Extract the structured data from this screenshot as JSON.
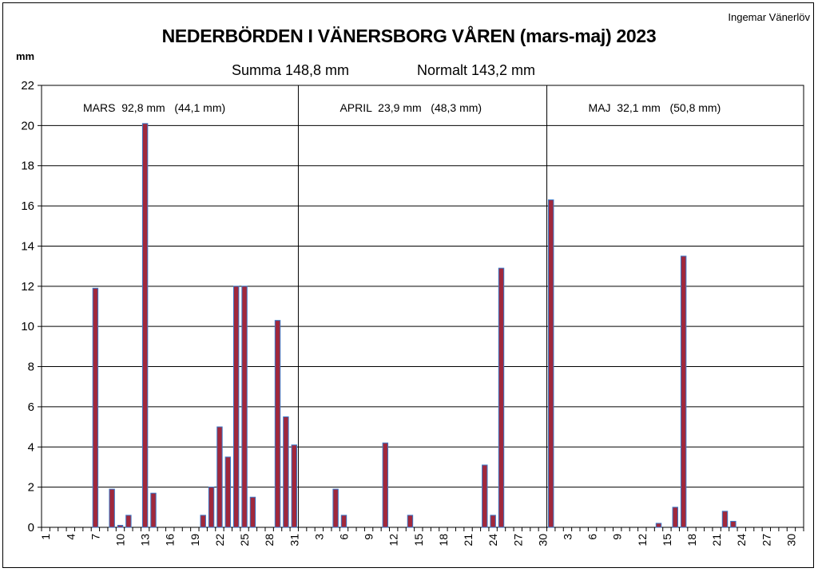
{
  "header": {
    "author": "Ingemar Vänerlöv",
    "title": "NEDERBÖRDEN I VÄNERSBORG  VÅREN (mars-maj) 2023",
    "sum_text": "Summa  148,8 mm",
    "normal_text": "Normalt  143,2 mm"
  },
  "chart_data": {
    "type": "bar",
    "title": "NEDERBÖRDEN I VÄNERSBORG  VÅREN (mars-maj) 2023",
    "ylabel": "mm",
    "xlabel": "",
    "ylim": [
      0,
      22
    ],
    "yticks": [
      0,
      2,
      4,
      6,
      8,
      10,
      12,
      14,
      16,
      18,
      20,
      22
    ],
    "grid": true,
    "bar_color": "#a0283c",
    "bar_edge_color": "#3a78c8",
    "months": [
      {
        "name": "MARS",
        "label": "MARS  92,8 mm   (44,1 mm)",
        "days": 31,
        "tick_labels": [
          "1",
          "4",
          "7",
          "10",
          "13",
          "16",
          "19",
          "22",
          "25",
          "28",
          "31"
        ],
        "values": [
          0,
          0,
          0,
          0,
          0,
          0,
          11.9,
          0,
          1.9,
          0.1,
          0.6,
          0,
          20.1,
          1.7,
          0,
          0,
          0,
          0,
          0,
          0.6,
          2.0,
          5.0,
          3.5,
          12.0,
          12.0,
          1.5,
          0,
          0,
          10.3,
          5.5,
          4.1
        ]
      },
      {
        "name": "APRIL",
        "label": "APRIL  23,9 mm   (48,3 mm)",
        "days": 30,
        "tick_labels": [
          "3",
          "6",
          "9",
          "12",
          "15",
          "18",
          "21",
          "24",
          "27",
          "30"
        ],
        "values": [
          0,
          0,
          0,
          0,
          1.9,
          0.6,
          0,
          0,
          0,
          0,
          4.2,
          0,
          0,
          0.6,
          0,
          0,
          0,
          0,
          0,
          0,
          0,
          0,
          3.1,
          0.6,
          12.9,
          0,
          0,
          0,
          0,
          0
        ]
      },
      {
        "name": "MAJ",
        "label": "MAJ  32,1 mm   (50,8 mm)",
        "days": 31,
        "tick_labels": [
          "3",
          "6",
          "9",
          "12",
          "15",
          "18",
          "21",
          "24",
          "27",
          "30"
        ],
        "values": [
          16.3,
          0,
          0,
          0,
          0,
          0,
          0,
          0,
          0,
          0,
          0,
          0,
          0,
          0.2,
          0,
          1.0,
          13.5,
          0,
          0,
          0,
          0,
          0.8,
          0.3,
          0,
          0,
          0,
          0,
          0,
          0,
          0,
          0
        ]
      }
    ]
  }
}
